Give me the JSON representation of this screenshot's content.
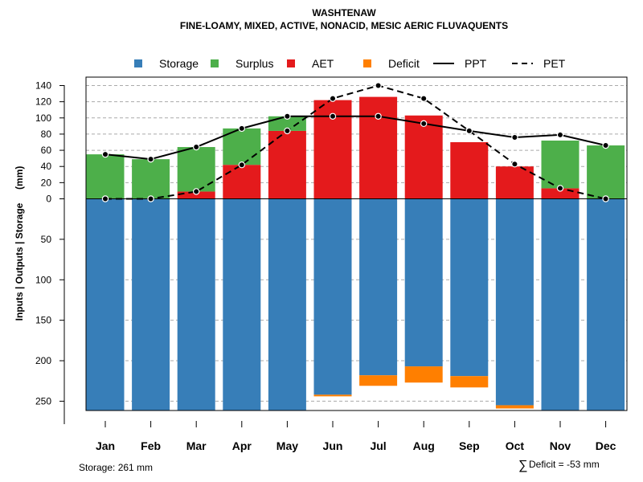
{
  "chart_data": {
    "type": "bar",
    "title": "WASHTENAW",
    "subtitle": "FINE-LOAMY, MIXED, ACTIVE, NONACID, MESIC AERIC FLUVAQUENTS",
    "ylabel": "Inputs | Outputs | Storage     (mm)",
    "categories": [
      "Jan",
      "Feb",
      "Mar",
      "Apr",
      "May",
      "Jun",
      "Jul",
      "Aug",
      "Sep",
      "Oct",
      "Nov",
      "Dec"
    ],
    "ylim_top": [
      0,
      140
    ],
    "ylim_bottom": [
      0,
      261
    ],
    "yticks_top": [
      "0",
      "20",
      "40",
      "60",
      "80",
      "100",
      "120",
      "140"
    ],
    "yticks_bottom": [
      "50",
      "100",
      "150",
      "200",
      "250"
    ],
    "series": [
      {
        "name": "Storage",
        "color": "#377EB8",
        "values": [
          261,
          261,
          261,
          261,
          261,
          242,
          218,
          207,
          219,
          255,
          261,
          261
        ]
      },
      {
        "name": "Surplus",
        "color": "#4DAF4A",
        "values": [
          55,
          49,
          55,
          45,
          18,
          0,
          0,
          0,
          0,
          0,
          59,
          66
        ]
      },
      {
        "name": "AET",
        "color": "#E41A1C",
        "values": [
          0,
          0,
          9,
          42,
          84,
          122,
          126,
          103,
          70,
          40,
          13,
          0
        ]
      },
      {
        "name": "Deficit",
        "color": "#FF7F00",
        "values": [
          0,
          0,
          0,
          0,
          0,
          2,
          13,
          20,
          14,
          4,
          0,
          0
        ]
      },
      {
        "name": "PPT",
        "color": "#000000",
        "values": [
          55,
          49,
          64,
          87,
          102,
          102,
          102,
          93,
          84,
          76,
          79,
          66
        ]
      },
      {
        "name": "PET",
        "color": "#000000",
        "values": [
          0,
          0,
          9,
          42,
          84,
          124,
          140,
          124,
          84,
          43,
          13,
          0
        ]
      }
    ],
    "legend": [
      "Storage",
      "Surplus",
      "AET",
      "Deficit",
      "PPT",
      "PET"
    ],
    "legend_position": "top",
    "storage_label": "Storage: 261 mm",
    "deficit_label": "Deficit = -53 mm",
    "deficit_symbol": "∑",
    "grid": true
  }
}
